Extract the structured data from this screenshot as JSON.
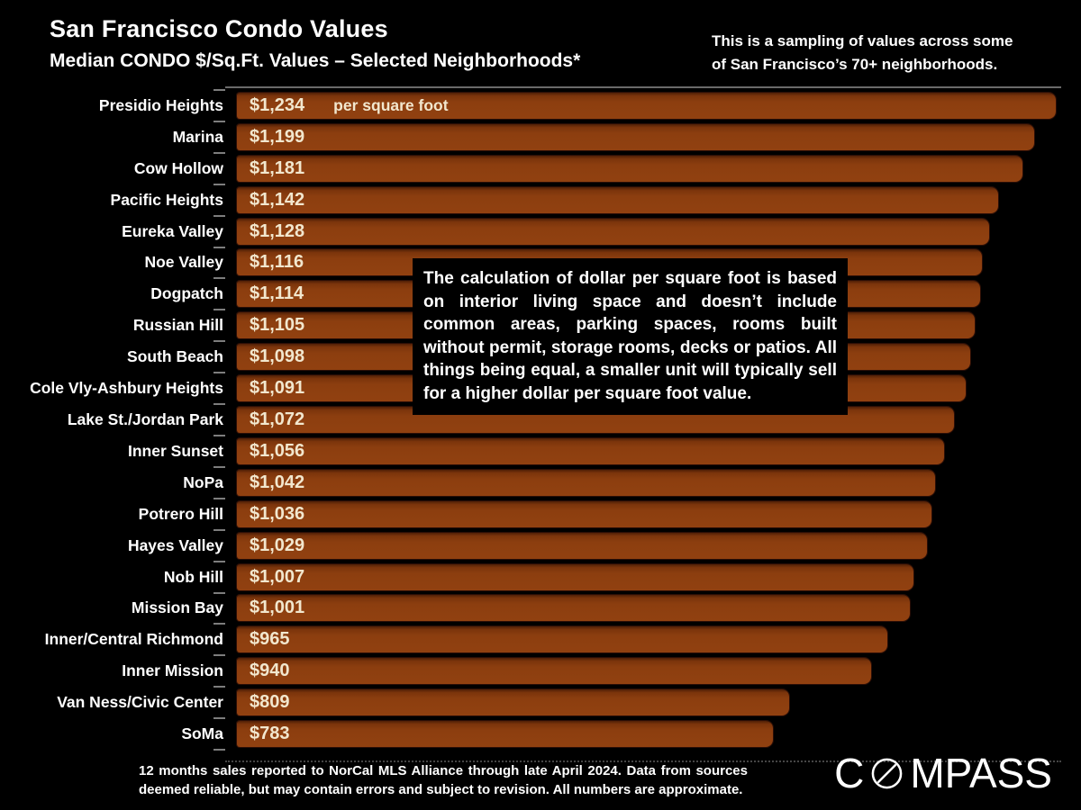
{
  "header": {
    "title": "San Francisco Condo Values",
    "subtitle": "Median CONDO $/Sq.Ft. Values – Selected Neighborhoods*",
    "sampling_note": "This is a sampling of values across some of San Francisco’s 70+ neighborhoods."
  },
  "chart_data": {
    "type": "bar",
    "orientation": "horizontal",
    "title": "San Francisco Condo Values",
    "subtitle": "Median CONDO $/Sq.Ft. Values – Selected Neighborhoods*",
    "xlabel": "",
    "ylabel": "",
    "unit_note": "per square foot",
    "grid": false,
    "legend": false,
    "background_color": "#000000",
    "bar_color": "#8C3E0F",
    "value_text_color": "#F2E7CE",
    "categories": [
      "Presidio Heights",
      "Marina",
      "Cow Hollow",
      "Pacific Heights",
      "Eureka Valley",
      "Noe Valley",
      "Dogpatch",
      "Russian Hill",
      "South Beach",
      "Cole Vly-Ashbury Heights",
      "Lake St./Jordan Park",
      "Inner Sunset",
      "NoPa",
      "Potrero Hill",
      "Hayes Valley",
      "Nob Hill",
      "Mission Bay",
      "Inner/Central Richmond",
      "Inner Mission",
      "Van Ness/Civic Center",
      "SoMa"
    ],
    "values": [
      1234,
      1199,
      1181,
      1142,
      1128,
      1116,
      1114,
      1105,
      1098,
      1091,
      1072,
      1056,
      1042,
      1036,
      1029,
      1007,
      1001,
      965,
      940,
      809,
      783
    ],
    "value_labels": [
      "$1,234",
      "$1,199",
      "$1,181",
      "$1,142",
      "$1,128",
      "$1,116",
      "$1,114",
      "$1,105",
      "$1,098",
      "$1,091",
      "$1,072",
      "$1,056",
      "$1,042",
      "$1,036",
      "$1,029",
      "$1,007",
      "$1,001",
      "$965",
      "$940",
      "$809",
      "$783"
    ],
    "xlim": [
      0,
      1250
    ]
  },
  "callout": {
    "text": "The calculation of dollar per square foot is based on interior living space and doesn’t include common areas, parking spaces, rooms built without permit, storage rooms, decks or patios. All things being equal, a smaller unit will typically sell for a higher dollar per square foot value."
  },
  "footer": {
    "note": "12 months sales reported to NorCal MLS Alliance through late April 2024. Data from sources deemed reliable, but may contain errors and subject to revision. All numbers are approximate.",
    "brand": {
      "name": "COMPASS",
      "wordmark_pre": "C",
      "wordmark_post": "MPASS"
    }
  }
}
